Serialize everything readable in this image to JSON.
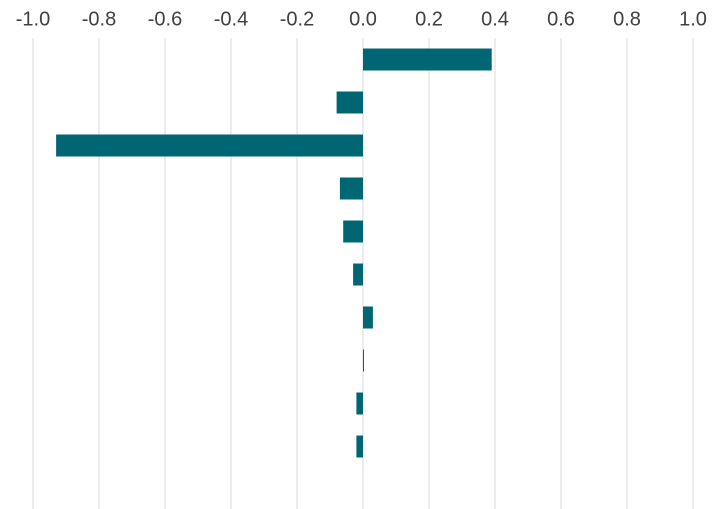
{
  "chart_data": {
    "type": "barh",
    "categories": [
      null,
      null,
      null,
      null,
      null,
      null,
      null,
      null,
      null,
      null
    ],
    "values": [
      0.39,
      -0.08,
      -0.93,
      -0.07,
      -0.06,
      -0.03,
      0.03,
      0.003,
      -0.02,
      -0.02
    ],
    "color": "#006673",
    "xlim": [
      -1.0,
      1.0
    ],
    "xticks": [
      {
        "value": -1.0,
        "label": "-1.0"
      },
      -0.8,
      -0.6,
      -0.4,
      -0.2,
      {
        "value": 0,
        "label": "0.0"
      },
      0.2,
      0.4,
      0.6,
      0.8,
      {
        "value": 1.0,
        "label": "1.0"
      }
    ],
    "grid": true
  }
}
